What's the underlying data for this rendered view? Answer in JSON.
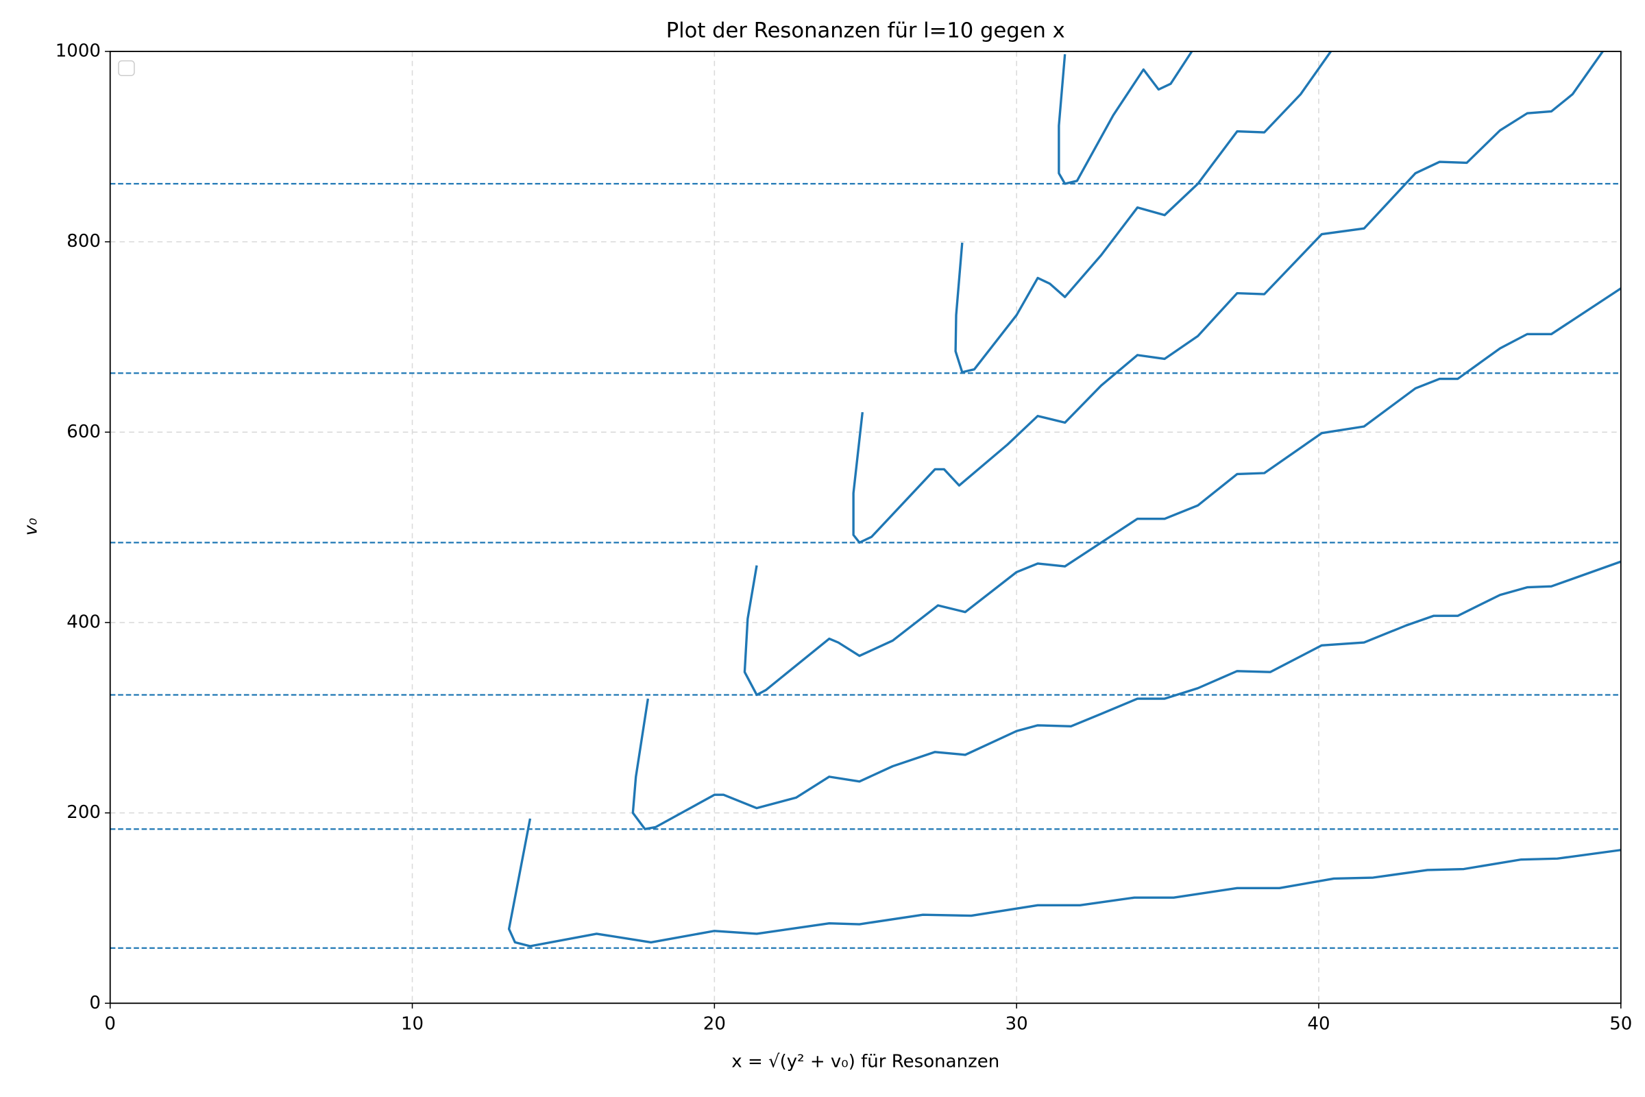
{
  "chart_data": {
    "type": "line",
    "title": "Plot der Resonanzen für l=10 gegen x",
    "x_label": "x = √(y² + v₀) für Resonanzen",
    "y_label": "v₀",
    "xlim": [
      0,
      50
    ],
    "ylim": [
      0,
      1000
    ],
    "xticks": [
      0,
      10,
      20,
      30,
      40,
      50
    ],
    "yticks": [
      0,
      200,
      400,
      600,
      800,
      1000
    ],
    "grid": true,
    "legend": "upper left",
    "hlines": {
      "values": [
        58,
        183,
        324,
        484,
        662,
        861
      ],
      "color": "#1f77b4",
      "style": "dashed"
    },
    "series": [
      {
        "color": "#1f77b4",
        "x": [
          13.9,
          13.2,
          13.4,
          13.9,
          16.1,
          17.9,
          20,
          21.4,
          23.8,
          24.8,
          26.9,
          28.5,
          30.7,
          32.1,
          33.9,
          35.2,
          37.3,
          38.7,
          40.5,
          41.8,
          43.6,
          44.8,
          46.7,
          47.9,
          50
        ],
        "values": [
          194,
          78,
          64,
          60,
          73,
          64,
          76,
          73,
          84,
          83,
          93,
          92,
          103,
          103,
          111,
          111,
          121,
          121,
          131,
          132,
          140,
          141,
          151,
          152,
          161
        ]
      },
      {
        "color": "#1f77b4",
        "x": [
          17.8,
          17.4,
          17.3,
          17.7,
          18.05,
          20,
          20.3,
          21.4,
          22.7,
          23.8,
          24.8,
          25.9,
          27.3,
          28.3,
          30,
          30.7,
          31.8,
          32.8,
          34,
          34.9,
          36,
          37.3,
          38.4,
          40.1,
          41.5,
          42.9,
          43.8,
          44.6,
          46,
          46.9,
          47.7,
          50
        ],
        "values": [
          320,
          238,
          200,
          183,
          185,
          219,
          219,
          205,
          216,
          238,
          233,
          249,
          264,
          261,
          286,
          292,
          291,
          304,
          320,
          320,
          331,
          349,
          348,
          376,
          379,
          397,
          407,
          407,
          429,
          437,
          438,
          464
        ]
      },
      {
        "color": "#1f77b4",
        "x": [
          21.4,
          21.1,
          21.0,
          21.4,
          21.7,
          23.8,
          24.1,
          24.8,
          25.9,
          27.4,
          28.3,
          30,
          30.7,
          31.6,
          32.8,
          34,
          34.9,
          36,
          37.3,
          38.2,
          40.1,
          41.5,
          43.2,
          44,
          44.6,
          46,
          46.9,
          47.7,
          50
        ],
        "values": [
          460,
          404,
          348,
          324,
          329,
          383,
          379,
          365,
          381,
          418,
          411,
          453,
          462,
          459,
          484,
          509,
          509,
          523,
          556,
          557,
          599,
          606,
          646,
          656,
          656,
          688,
          703,
          703,
          751
        ]
      },
      {
        "color": "#1f77b4",
        "x": [
          24.9,
          24.6,
          24.6,
          24.8,
          25.2,
          27.3,
          27.6,
          28.1,
          29.7,
          30.7,
          31.6,
          32.8,
          34,
          34.9,
          36,
          37.3,
          38.2,
          40.1,
          41.5,
          43.2,
          44,
          44.9,
          46,
          46.9,
          47.7,
          48.4,
          49.4
        ],
        "values": [
          621,
          536,
          492,
          484,
          490,
          561,
          561,
          544,
          587,
          617,
          610,
          649,
          681,
          677,
          701,
          746,
          745,
          808,
          814,
          872,
          884,
          883,
          917,
          935,
          937,
          955,
          1000
        ]
      },
      {
        "color": "#1f77b4",
        "x": [
          28.2,
          28.0,
          27.98,
          28.2,
          28.6,
          30,
          30.7,
          31.1,
          31.6,
          32.8,
          34,
          34.9,
          36,
          37.3,
          38.2,
          39.4,
          40.4
        ],
        "values": [
          799,
          723,
          685,
          663,
          666,
          723,
          762,
          756,
          742,
          786,
          836,
          828,
          861,
          916,
          915,
          955,
          1000
        ]
      },
      {
        "color": "#1f77b4",
        "x": [
          31.6,
          31.4,
          31.4,
          31.6,
          32.0,
          33.2,
          34.2,
          34.7,
          35.1,
          35.8
        ],
        "values": [
          997,
          922,
          872,
          861,
          864,
          933,
          981,
          960,
          966,
          1000
        ]
      }
    ]
  }
}
